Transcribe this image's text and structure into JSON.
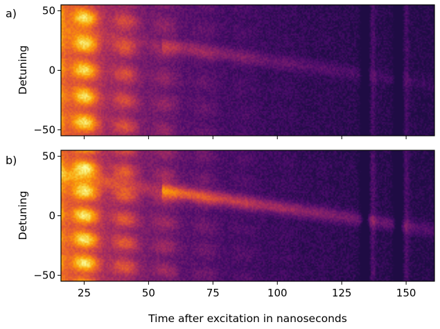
{
  "chart_data": [
    {
      "type": "heatmap",
      "panel_label": "a)",
      "title": "",
      "xlabel": "",
      "ylabel": "Detuning",
      "xlim": [
        16,
        161
      ],
      "ylim": [
        -55,
        55
      ],
      "x_ticks": [
        25,
        50,
        75,
        100,
        125,
        150
      ],
      "x_tick_labels": [
        "25",
        "50",
        "75",
        "100",
        "125",
        "150"
      ],
      "y_ticks": [
        50,
        0,
        -50
      ],
      "y_tick_labels": [
        "50",
        "0",
        "−50"
      ],
      "colormap": "inferno",
      "grid": false,
      "legend": "none",
      "intensity_model": {
        "initial_decay_ns": 24,
        "oscillation_period_ns": 15.5,
        "first_peak_ns": 26,
        "detuning_fringe_spacing": 22,
        "revival_times_ns": [
          134,
          147
        ],
        "revival_strength": 0.25,
        "diagonal_trace_strength": 0.2
      }
    },
    {
      "type": "heatmap",
      "panel_label": "b)",
      "title": "",
      "xlabel": "Time after excitation in nanoseconds",
      "ylabel": "Detuning",
      "xlim": [
        16,
        161
      ],
      "ylim": [
        -55,
        55
      ],
      "x_ticks": [
        25,
        50,
        75,
        100,
        125,
        150
      ],
      "x_tick_labels": [
        "25",
        "50",
        "75",
        "100",
        "125",
        "150"
      ],
      "y_ticks": [
        50,
        0,
        -50
      ],
      "y_tick_labels": [
        "50",
        "0",
        "−50"
      ],
      "colormap": "inferno",
      "grid": false,
      "legend": "none",
      "intensity_model": {
        "initial_decay_ns": 27,
        "oscillation_period_ns": 15.5,
        "first_peak_ns": 26,
        "detuning_fringe_spacing": 20,
        "revival_times_ns": [
          134,
          147
        ],
        "revival_strength": 0.3,
        "diagonal_trace_strength": 0.45
      }
    }
  ],
  "colors": {
    "frame": "#000000",
    "background": "#ffffff",
    "colormap_stops": [
      "#000004",
      "#1b0c41",
      "#4a0c6b",
      "#781c6d",
      "#a52c60",
      "#cf4446",
      "#ed6925",
      "#fb9b06",
      "#f7d13d",
      "#fcffa4"
    ]
  }
}
